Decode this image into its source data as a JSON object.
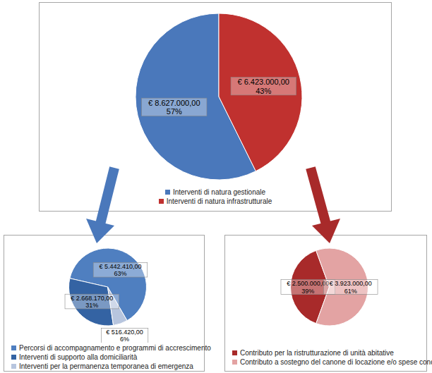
{
  "chart_data": [
    {
      "type": "pie",
      "categories": [
        "Interventi di natura gestionale",
        "Interventi di natura infrastrutturale"
      ],
      "values": [
        8627000,
        6423000
      ],
      "value_labels": [
        "€ 8.627.000,00",
        "€ 6.423.000,00"
      ],
      "percents": [
        57,
        43
      ],
      "percent_labels": [
        "57%",
        "43%"
      ],
      "colors": [
        "#4a78bb",
        "#c0312f"
      ],
      "data_labels": true,
      "legend": "bottom"
    },
    {
      "type": "pie",
      "categories": [
        "Percorsi di accompagnamento e programmi di accrescimento",
        "Interventi di supporto alla domiciliarità",
        "Interventi per la permanenza temporanea di emergenza"
      ],
      "values": [
        5442410,
        2668170,
        516420
      ],
      "value_labels": [
        "€ 5.442.410,00",
        "€ 2.668.170,00",
        "€ 516.420,00"
      ],
      "percents": [
        63,
        31,
        6
      ],
      "percent_labels": [
        "63%",
        "31%",
        "6%"
      ],
      "colors": [
        "#4f7fc0",
        "#3463a3",
        "#b7c5de"
      ],
      "data_labels": true,
      "legend": "bottom"
    },
    {
      "type": "pie",
      "categories": [
        "Contributo per la ristrutturazione di unità abitative",
        "Contributo a sostegno del canone di locazione e/o spese condominiali"
      ],
      "values": [
        2500000,
        3923000
      ],
      "value_labels": [
        "€ 2.500.000,00",
        "€ 3.923.000,00"
      ],
      "percents": [
        39,
        61
      ],
      "percent_labels": [
        "39%",
        "61%"
      ],
      "colors": [
        "#a82a2a",
        "#e3a3a3"
      ],
      "data_labels": true,
      "legend": "bottom"
    }
  ]
}
